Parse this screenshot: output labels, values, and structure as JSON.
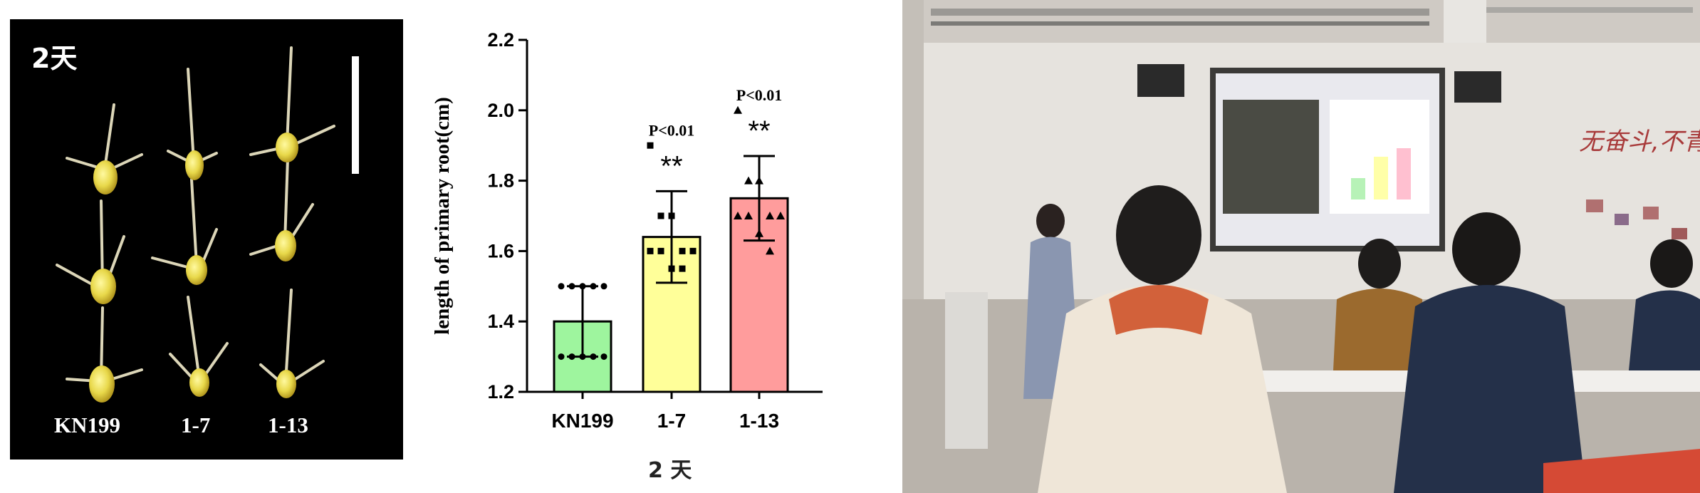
{
  "photo": {
    "day_label": "2天",
    "lines": [
      "KN199",
      "1-7",
      "1-13"
    ]
  },
  "chart_data": {
    "type": "bar",
    "categories": [
      "KN199",
      "1-7",
      "1-13"
    ],
    "values": [
      1.4,
      1.64,
      1.75
    ],
    "error": [
      0.1,
      0.13,
      0.12
    ],
    "points": [
      [
        1.5,
        1.5,
        1.5,
        1.5,
        1.5,
        1.3,
        1.3,
        1.3,
        1.3,
        1.3
      ],
      [
        1.9,
        1.7,
        1.7,
        1.6,
        1.6,
        1.6,
        1.6,
        1.55,
        1.55
      ],
      [
        2.0,
        1.8,
        1.8,
        1.7,
        1.7,
        1.7,
        1.7,
        1.65,
        1.6
      ]
    ],
    "markers": [
      "circle",
      "square",
      "triangle"
    ],
    "colors": [
      "#9ef59e",
      "#ffff99",
      "#ff9c9c"
    ],
    "significance": [
      "",
      "**",
      "**"
    ],
    "pvalues": [
      "",
      "P<0.01",
      "P<0.01"
    ],
    "ylabel": "length of primary root(cm)",
    "xlabel": "2 天",
    "ylim": [
      1.2,
      2.2
    ],
    "yticks": [
      1.2,
      1.4,
      1.6,
      1.8,
      2.0,
      2.2
    ],
    "grid": false
  }
}
